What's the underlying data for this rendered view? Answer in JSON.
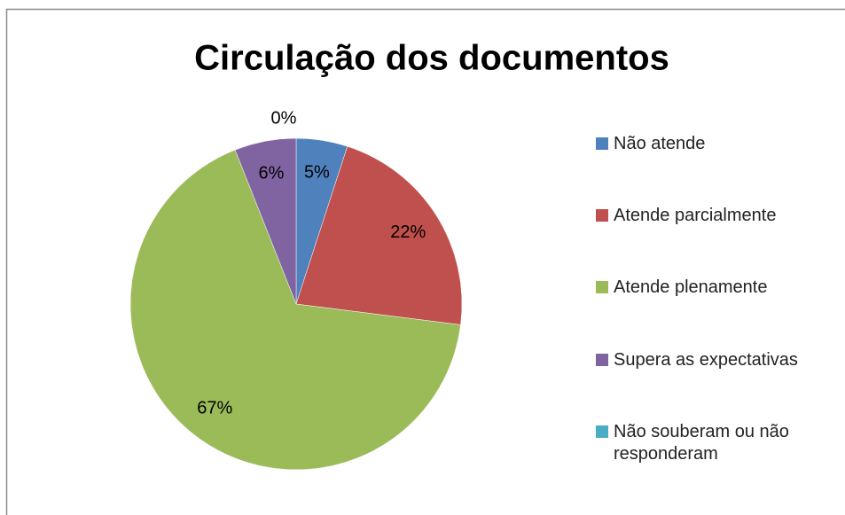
{
  "chart_data": {
    "type": "pie",
    "title": "Circulação dos documentos",
    "categories": [
      "Não atende",
      "Atende parcialmente",
      "Atende plenamente",
      "Supera as expectativas",
      "Não souberam ou não responderam"
    ],
    "values": [
      5,
      22,
      67,
      6,
      0
    ],
    "value_labels": [
      "5%",
      "22%",
      "67%",
      "6%",
      "0%"
    ],
    "colors": [
      "#4f81bd",
      "#c0504d",
      "#9bbb59",
      "#8064a2",
      "#4bacc6"
    ],
    "legend": "right"
  }
}
